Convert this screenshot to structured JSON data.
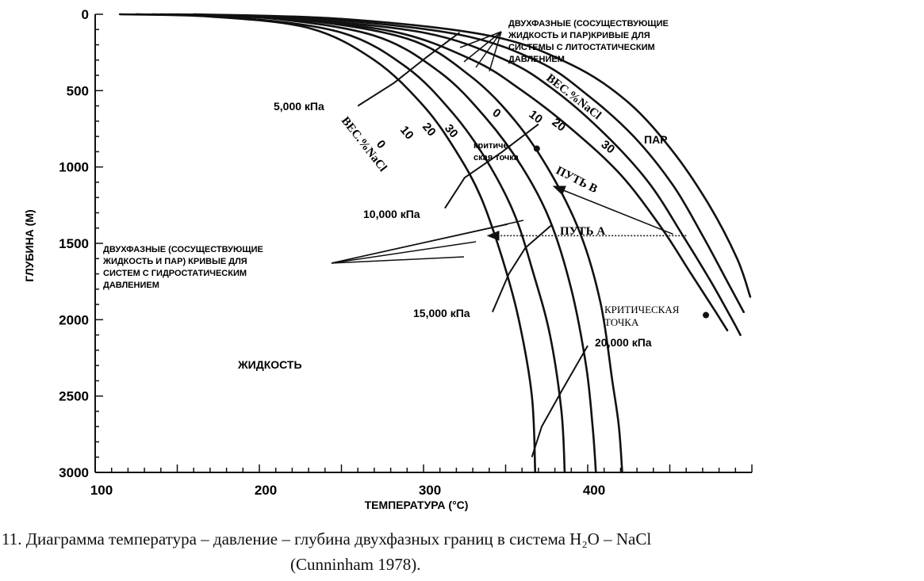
{
  "chart_data": {
    "type": "line",
    "xlabel": "ТЕМПЕРАТУРА (°С)",
    "ylabel": "ГЛУБИНА (М)",
    "xlim": [
      100,
      500
    ],
    "ylim": [
      3000,
      0
    ],
    "x_ticks": [
      "100",
      "200",
      "300",
      "400"
    ],
    "y_ticks": [
      "0",
      "500",
      "1000",
      "1500",
      "2000",
      "2500",
      "3000"
    ],
    "series": [
      {
        "name": "0",
        "group": "hydrostatic",
        "points": [
          [
            115,
            0
          ],
          [
            170,
            15
          ],
          [
            230,
            90
          ],
          [
            270,
            300
          ],
          [
            300,
            600
          ],
          [
            320,
            900
          ],
          [
            335,
            1200
          ],
          [
            348,
            1600
          ],
          [
            358,
            2000
          ],
          [
            366,
            2500
          ],
          [
            368,
            3000
          ]
        ]
      },
      {
        "name": "10",
        "group": "hydrostatic",
        "points": [
          [
            125,
            0
          ],
          [
            185,
            20
          ],
          [
            250,
            120
          ],
          [
            290,
            350
          ],
          [
            318,
            650
          ],
          [
            338,
            950
          ],
          [
            355,
            1300
          ],
          [
            367,
            1700
          ],
          [
            377,
            2100
          ],
          [
            384,
            2600
          ],
          [
            386,
            3000
          ]
        ]
      },
      {
        "name": "20",
        "group": "hydrostatic",
        "points": [
          [
            140,
            0
          ],
          [
            205,
            25
          ],
          [
            270,
            140
          ],
          [
            310,
            380
          ],
          [
            338,
            680
          ],
          [
            360,
            1000
          ],
          [
            377,
            1350
          ],
          [
            390,
            1800
          ],
          [
            399,
            2300
          ],
          [
            403,
            2700
          ],
          [
            405,
            3000
          ]
        ]
      },
      {
        "name": "30",
        "group": "hydrostatic",
        "points": [
          [
            150,
            0
          ],
          [
            220,
            30
          ],
          [
            290,
            160
          ],
          [
            328,
            400
          ],
          [
            356,
            700
          ],
          [
            378,
            1050
          ],
          [
            396,
            1450
          ],
          [
            408,
            1900
          ],
          [
            415,
            2400
          ],
          [
            419,
            2700
          ],
          [
            421,
            3000
          ]
        ]
      },
      {
        "name": "0",
        "group": "lithostatic",
        "points": [
          [
            125,
            0
          ],
          [
            200,
            20
          ],
          [
            280,
            110
          ],
          [
            330,
            300
          ],
          [
            360,
            500
          ],
          [
            390,
            750
          ],
          [
            420,
            1050
          ],
          [
            445,
            1400
          ],
          [
            463,
            1700
          ],
          [
            478,
            1950
          ],
          [
            485,
            2070
          ]
        ]
      },
      {
        "name": "10",
        "group": "lithostatic",
        "points": [
          [
            135,
            0
          ],
          [
            215,
            25
          ],
          [
            300,
            120
          ],
          [
            350,
            300
          ],
          [
            380,
            500
          ],
          [
            410,
            780
          ],
          [
            437,
            1100
          ],
          [
            458,
            1450
          ],
          [
            475,
            1750
          ],
          [
            488,
            2000
          ],
          [
            493,
            2100
          ]
        ]
      },
      {
        "name": "20",
        "group": "lithostatic",
        "points": [
          [
            145,
            0
          ],
          [
            230,
            25
          ],
          [
            320,
            130
          ],
          [
            370,
            310
          ],
          [
            400,
            530
          ],
          [
            428,
            800
          ],
          [
            452,
            1120
          ],
          [
            470,
            1450
          ],
          [
            485,
            1750
          ],
          [
            495,
            1950
          ]
        ]
      },
      {
        "name": "30",
        "group": "lithostatic",
        "points": [
          [
            160,
            0
          ],
          [
            250,
            30
          ],
          [
            340,
            140
          ],
          [
            390,
            330
          ],
          [
            425,
            580
          ],
          [
            452,
            900
          ],
          [
            474,
            1250
          ],
          [
            491,
            1600
          ],
          [
            499,
            1850
          ]
        ]
      }
    ],
    "isobars": [
      {
        "label": "5,000 кПа",
        "points": [
          [
            260,
            600
          ],
          [
            282,
            450
          ],
          [
            302,
            280
          ],
          [
            322,
            120
          ]
        ]
      },
      {
        "label": "10,000 кПа",
        "points": [
          [
            313,
            1270
          ],
          [
            325,
            1070
          ],
          [
            348,
            900
          ],
          [
            370,
            720
          ]
        ]
      },
      {
        "label": "15,000 кПа",
        "points": [
          [
            342,
            1950
          ],
          [
            352,
            1700
          ],
          [
            362,
            1530
          ],
          [
            378,
            1380
          ]
        ]
      },
      {
        "label": "20,000 кПа",
        "points": [
          [
            366,
            2900
          ],
          [
            372,
            2700
          ],
          [
            385,
            2450
          ],
          [
            400,
            2170
          ]
        ]
      }
    ],
    "paths": [
      {
        "label": "ПУТЬ  А",
        "points": [
          [
            460,
            1450
          ],
          [
            340,
            1450
          ]
        ]
      },
      {
        "label": "ПУТЬ  В",
        "points": [
          [
            452,
            1440
          ],
          [
            380,
            1130
          ]
        ]
      }
    ],
    "points": [
      {
        "label": "крити-ческая точка",
        "x": 369,
        "y": 880
      },
      {
        "label": "КРИТИЧЕСКАЯ ТОЧКА",
        "x": 472,
        "y": 1970
      }
    ]
  },
  "labels": {
    "litho_note": [
      "ДВУХФАЗНЫЕ (СОСУЩЕСТВУЮЩИЕ",
      "ЖИДКОСТЬ И ПАР)КРИВЫЕ ДЛЯ",
      "СИСТЕМЫ С ЛИТОСТАТИЧЕСКИМ",
      "ДАВЛЕНИЕМ"
    ],
    "hydro_note": [
      "ДВУХФАЗНЫЕ (СОСУЩЕСТВУЮЩИЕ",
      "ЖИДКОСТЬ И ПАР) КРИВЫЕ ДЛЯ",
      "СИСТЕМ С ГИДРОСТАТИЧЕСКИМ",
      "ДАВЛЕНИЕМ"
    ],
    "weight_litho": "ВЕС.%NaCl",
    "weight_hydro": "ВЕС.%NaCl",
    "vapor": "ПАР",
    "liquid": "ЖИДКОСТЬ",
    "crit1": [
      "критиче-",
      "ская точка"
    ],
    "crit2": [
      "КРИТИЧЕСКАЯ",
      "ТОЧКА"
    ],
    "path_a": "ПУТЬ  А",
    "path_b": "ПУТЬ  В"
  },
  "caption": {
    "line1": "11.   Диаграмма температура  –  давление  –  глубина двухфазных границ в система Н₂О  –  NaCl",
    "line2": "(Cunninham 1978)."
  }
}
